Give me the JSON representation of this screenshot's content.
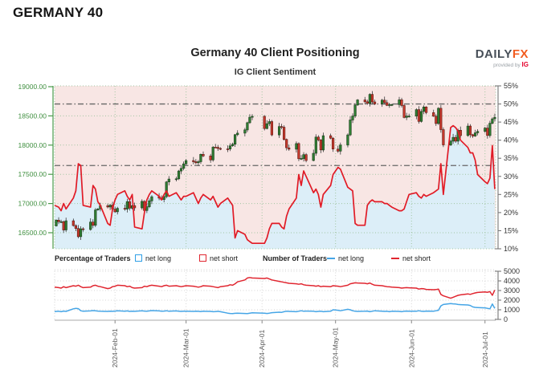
{
  "page": {
    "title": "GERMANY 40"
  },
  "header": {
    "title": "Germany 40 Client Positioning",
    "subtitle": "IG Client Sentiment",
    "logo": {
      "daily": "DAILY",
      "fx": "FX",
      "provided_by": "provided by",
      "ig": "IG"
    }
  },
  "legend": {
    "percentage_label": "Percentage of Traders",
    "number_label": "Number of Traders",
    "pct_net_long": "net long",
    "pct_net_short": "net short",
    "num_net_long": "net long",
    "num_net_short": "net short"
  },
  "colors": {
    "sentiment_red": "#e11b26",
    "count_blue": "#45a5e6",
    "count_red": "#e0252f",
    "bg_pink": "#f8e6e4",
    "bg_blue": "#dceef8",
    "grid_green": "#9fc49f",
    "axis_green": "#4a9a4a",
    "label_green": "#3f8f3f",
    "candle_up": "#2f7e32",
    "candle_up_stroke": "#1c3e1c",
    "candle_down": "#c8392c",
    "candle_down_stroke": "#5e1a14",
    "wick": "#3a3a3a",
    "ref_line": "#666666",
    "right_axis": "#777777",
    "bottom_grid": "#d5d5d5",
    "bottom_axis": "#aaaaaa",
    "tick_text": "#333333",
    "month_text": "#555555"
  },
  "chart_data": [
    {
      "name": "price-and-sentiment",
      "type": "candlestick",
      "title": "IG Client Sentiment",
      "left_axis": {
        "title": "price",
        "tick_labels": [
          "19000.00",
          "18500.00",
          "18000.00",
          "17500.00",
          "17000.00",
          "16500.00"
        ],
        "tick_values": [
          19000,
          18500,
          18000,
          17500,
          17000,
          16500
        ],
        "min": 16225,
        "max": 19014
      },
      "right_axis": {
        "title": "percent of traders net short",
        "tick_labels": [
          "55%",
          "50%",
          "45%",
          "40%",
          "35%",
          "30%",
          "25%",
          "20%",
          "15%",
          "10%"
        ],
        "tick_values": [
          55,
          50,
          45,
          40,
          35,
          30,
          25,
          20,
          15,
          10
        ],
        "min": 10,
        "max": 55
      },
      "reference_lines_pct": [
        50,
        33
      ],
      "x_ticks": [
        {
          "label": "2024-Feb-01",
          "date": "2024-02-01"
        },
        {
          "label": "2024-Mar-01",
          "date": "2024-03-01"
        },
        {
          "label": "2024-Apr-01",
          "date": "2024-04-01"
        },
        {
          "label": "2024-May-01",
          "date": "2024-05-01"
        },
        {
          "label": "2024-Jun-01",
          "date": "2024-06-01"
        },
        {
          "label": "2024-Jul-01",
          "date": "2024-07-01"
        }
      ],
      "open_first": 16617,
      "dates": [
        "2024-01-08",
        "2024-01-09",
        "2024-01-10",
        "2024-01-11",
        "2024-01-12",
        "2024-01-15",
        "2024-01-16",
        "2024-01-17",
        "2024-01-18",
        "2024-01-19",
        "2024-01-22",
        "2024-01-23",
        "2024-01-24",
        "2024-01-25",
        "2024-01-26",
        "2024-01-29",
        "2024-01-30",
        "2024-01-31",
        "2024-02-01",
        "2024-02-02",
        "2024-02-05",
        "2024-02-06",
        "2024-02-07",
        "2024-02-08",
        "2024-02-09",
        "2024-02-12",
        "2024-02-13",
        "2024-02-14",
        "2024-02-15",
        "2024-02-16",
        "2024-02-19",
        "2024-02-20",
        "2024-02-21",
        "2024-02-22",
        "2024-02-23",
        "2024-02-26",
        "2024-02-27",
        "2024-02-28",
        "2024-02-29",
        "2024-03-01",
        "2024-03-04",
        "2024-03-05",
        "2024-03-06",
        "2024-03-07",
        "2024-03-08",
        "2024-03-11",
        "2024-03-12",
        "2024-03-13",
        "2024-03-14",
        "2024-03-15",
        "2024-03-18",
        "2024-03-19",
        "2024-03-20",
        "2024-03-21",
        "2024-03-22",
        "2024-03-25",
        "2024-03-26",
        "2024-03-27",
        "2024-03-28",
        "2024-04-02",
        "2024-04-03",
        "2024-04-04",
        "2024-04-05",
        "2024-04-08",
        "2024-04-09",
        "2024-04-10",
        "2024-04-11",
        "2024-04-12",
        "2024-04-15",
        "2024-04-16",
        "2024-04-17",
        "2024-04-18",
        "2024-04-19",
        "2024-04-22",
        "2024-04-23",
        "2024-04-24",
        "2024-04-25",
        "2024-04-26",
        "2024-04-29",
        "2024-04-30",
        "2024-05-02",
        "2024-05-03",
        "2024-05-06",
        "2024-05-07",
        "2024-05-08",
        "2024-05-09",
        "2024-05-10",
        "2024-05-13",
        "2024-05-14",
        "2024-05-15",
        "2024-05-16",
        "2024-05-17",
        "2024-05-20",
        "2024-05-21",
        "2024-05-22",
        "2024-05-23",
        "2024-05-24",
        "2024-05-27",
        "2024-05-28",
        "2024-05-29",
        "2024-05-30",
        "2024-05-31",
        "2024-06-03",
        "2024-06-04",
        "2024-06-05",
        "2024-06-06",
        "2024-06-07",
        "2024-06-10",
        "2024-06-11",
        "2024-06-12",
        "2024-06-13",
        "2024-06-14",
        "2024-06-17",
        "2024-06-18",
        "2024-06-19",
        "2024-06-20",
        "2024-06-21",
        "2024-06-24",
        "2024-06-25",
        "2024-06-26",
        "2024-06-27",
        "2024-06-28",
        "2024-07-01",
        "2024-07-02",
        "2024-07-03",
        "2024-07-04",
        "2024-07-05"
      ],
      "close": [
        16716,
        16688,
        16690,
        16547,
        16704,
        16622,
        16572,
        16432,
        16567,
        16555,
        16683,
        16627,
        16890,
        16907,
        16961,
        16941,
        16972,
        16904,
        16859,
        16918,
        16904,
        17033,
        16921,
        16963,
        16926,
        17037,
        16880,
        16945,
        17046,
        17117,
        17092,
        17068,
        17118,
        17370,
        17419,
        17423,
        17556,
        17601,
        17678,
        17735,
        17716,
        17698,
        17716,
        17842,
        17815,
        17746,
        17965,
        17961,
        17942,
        17936,
        17933,
        17987,
        18015,
        18179,
        18205,
        18261,
        18384,
        18477,
        18492,
        18283,
        18367,
        18403,
        18175,
        18318,
        18307,
        18097,
        17954,
        17930,
        18026,
        17766,
        17770,
        17837,
        17737,
        17860,
        18138,
        18088,
        17917,
        18161,
        18118,
        17932,
        17896,
        18001,
        18175,
        18430,
        18498,
        18686,
        18773,
        18742,
        18716,
        18869,
        18739,
        18704,
        18769,
        18727,
        18680,
        18691,
        18694,
        18775,
        18678,
        18473,
        18497,
        18498,
        18608,
        18406,
        18576,
        18653,
        18557,
        18495,
        18370,
        18631,
        18265,
        18002,
        18068,
        18132,
        18067,
        18254,
        18164,
        18326,
        18178,
        18155,
        18210,
        18235,
        18291,
        18164,
        18374,
        18450,
        18475
      ],
      "pct_net_short": [
        22,
        21.5,
        20.5,
        22.5,
        21,
        24,
        26,
        33.5,
        33,
        22,
        21.5,
        27.5,
        26.5,
        23,
        22,
        17,
        16.5,
        21,
        23.5,
        25,
        26,
        24.5,
        23.5,
        25,
        16,
        15.5,
        20,
        23.5,
        25,
        26,
        24.5,
        23.5,
        25,
        26,
        24.5,
        25.5,
        24.5,
        23.5,
        24.5,
        24.5,
        25.5,
        24,
        22.5,
        24,
        25,
        23.5,
        24.5,
        23,
        21.5,
        22.5,
        24,
        23,
        22,
        13,
        15,
        14,
        12.5,
        12,
        11.5,
        11.5,
        13,
        15.5,
        17,
        17,
        16,
        15.5,
        19,
        21,
        24,
        30.5,
        27.5,
        31.5,
        30,
        25.5,
        26.5,
        25,
        21.5,
        25,
        27.5,
        30.5,
        32.5,
        32,
        27,
        26.5,
        26,
        17,
        16.5,
        16.5,
        22,
        23,
        23.5,
        23,
        23,
        22.5,
        22.5,
        22,
        21.5,
        20.5,
        20.5,
        21,
        23,
        25,
        25.5,
        24.5,
        24,
        25,
        24.5,
        25.5,
        26,
        26.5,
        33.5,
        25,
        43.5,
        44,
        43.5,
        42.5,
        40,
        38,
        36.5,
        36.5,
        34.5,
        30.5,
        28.5,
        28,
        29.5,
        38.5,
        26.5
      ]
    },
    {
      "name": "number-of-traders",
      "type": "line",
      "right_axis": {
        "tick_labels": [
          "5000",
          "4000",
          "3000",
          "2000",
          "1000",
          "0"
        ],
        "tick_values": [
          5000,
          4000,
          3000,
          2000,
          1000,
          0
        ],
        "min": 0,
        "max": 5000
      },
      "series": [
        {
          "name": "net long",
          "color_key": "count_blue",
          "values": [
            820,
            850,
            800,
            870,
            830,
            1100,
            1150,
            1120,
            900,
            850,
            880,
            920,
            900,
            870,
            850,
            830,
            860,
            840,
            870,
            900,
            850,
            880,
            830,
            860,
            840,
            900,
            870,
            850,
            880,
            920,
            880,
            850,
            870,
            900,
            850,
            880,
            860,
            830,
            860,
            850,
            830,
            860,
            840,
            820,
            850,
            830,
            800,
            820,
            840,
            800,
            650,
            620,
            600,
            630,
            650,
            620,
            600,
            640,
            680,
            640,
            620,
            650,
            700,
            750,
            730,
            800,
            850,
            830,
            800,
            850,
            900,
            850,
            870,
            850,
            800,
            830,
            850,
            800,
            850,
            1000,
            950,
            900,
            1050,
            1000,
            900,
            850,
            830,
            850,
            870,
            800,
            850,
            900,
            850,
            830,
            850,
            800,
            850,
            830,
            800,
            850,
            870,
            850,
            850,
            900,
            850,
            830,
            870,
            850,
            900,
            950,
            1400,
            1550,
            1650,
            1620,
            1600,
            1550,
            1530,
            1500,
            1450,
            1300,
            1250,
            1230,
            1200,
            1150,
            1100,
            1600,
            1150
          ]
        },
        {
          "name": "net short",
          "color_key": "count_red",
          "values": [
            3350,
            3300,
            3250,
            3400,
            3300,
            3500,
            3450,
            3550,
            3400,
            3300,
            3350,
            3500,
            3550,
            3450,
            3400,
            3200,
            3250,
            3400,
            3450,
            3550,
            3500,
            3400,
            3450,
            3300,
            3250,
            3300,
            3450,
            3400,
            3500,
            3550,
            3450,
            3400,
            3500,
            3550,
            3450,
            3500,
            3450,
            3400,
            3450,
            3500,
            3450,
            3400,
            3350,
            3400,
            3500,
            3450,
            3400,
            3350,
            3300,
            3400,
            3500,
            3600,
            3550,
            3700,
            3900,
            4100,
            4300,
            4350,
            4300,
            4250,
            4300,
            4200,
            4100,
            3950,
            3900,
            3850,
            3800,
            3750,
            3700,
            3650,
            3700,
            3600,
            3550,
            3500,
            3450,
            3500,
            3400,
            3450,
            3400,
            3500,
            3450,
            3400,
            3550,
            3700,
            3750,
            3800,
            3780,
            3750,
            3700,
            3780,
            3650,
            3550,
            3500,
            3450,
            3400,
            3380,
            3350,
            3300,
            3250,
            3280,
            3300,
            3280,
            3250,
            3150,
            3200,
            3180,
            3120,
            3080,
            3100,
            3150,
            2600,
            2450,
            2200,
            2300,
            2400,
            2500,
            2550,
            2650,
            2600,
            2680,
            2750,
            2800,
            2850,
            2820,
            2880,
            2500,
            3050
          ]
        }
      ]
    }
  ]
}
